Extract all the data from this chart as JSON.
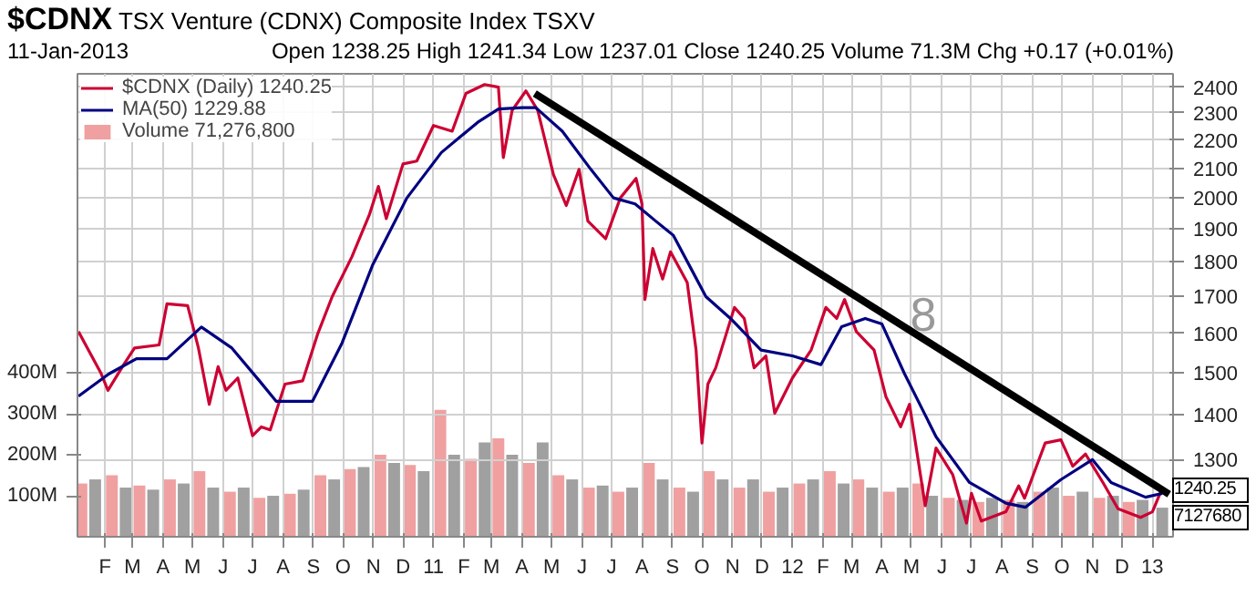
{
  "chart_data": {
    "type": "line",
    "title": "$CDNX",
    "subtitle": "TSX Venture (CDNX) Composite Index TSXV",
    "annotations": [
      "11-Jan-2013",
      "Open 1238.25 High 1241.34 Low 1237.01 Close 1240.25 Volume 71.3M Chg +0.17 (+0.01%)",
      "1240.25",
      "7127680",
      "8"
    ],
    "xlim": [
      "2010-01-04",
      "2013-01-22"
    ],
    "xticks": [
      {
        "value": "2010-02-01",
        "label": "F"
      },
      {
        "value": "2010-03-01",
        "label": "M"
      },
      {
        "value": "2010-04-01",
        "label": "A"
      },
      {
        "value": "2010-05-01",
        "label": "M"
      },
      {
        "value": "2010-06-01",
        "label": "J"
      },
      {
        "value": "2010-07-01",
        "label": "J"
      },
      {
        "value": "2010-08-01",
        "label": "A"
      },
      {
        "value": "2010-09-01",
        "label": "S"
      },
      {
        "value": "2010-10-01",
        "label": "O"
      },
      {
        "value": "2010-11-01",
        "label": "N"
      },
      {
        "value": "2010-12-01",
        "label": "D"
      },
      {
        "value": "2011-01-01",
        "label": "11"
      },
      {
        "value": "2011-02-01",
        "label": "F"
      },
      {
        "value": "2011-03-01",
        "label": "M"
      },
      {
        "value": "2011-04-01",
        "label": "A"
      },
      {
        "value": "2011-05-01",
        "label": "M"
      },
      {
        "value": "2011-06-01",
        "label": "J"
      },
      {
        "value": "2011-07-01",
        "label": "J"
      },
      {
        "value": "2011-08-01",
        "label": "A"
      },
      {
        "value": "2011-09-01",
        "label": "S"
      },
      {
        "value": "2011-10-01",
        "label": "O"
      },
      {
        "value": "2011-11-01",
        "label": "N"
      },
      {
        "value": "2011-12-01",
        "label": "D"
      },
      {
        "value": "2012-01-01",
        "label": "12"
      },
      {
        "value": "2012-02-01",
        "label": "F"
      },
      {
        "value": "2012-03-01",
        "label": "M"
      },
      {
        "value": "2012-04-01",
        "label": "A"
      },
      {
        "value": "2012-05-01",
        "label": "M"
      },
      {
        "value": "2012-06-01",
        "label": "J"
      },
      {
        "value": "2012-07-01",
        "label": "J"
      },
      {
        "value": "2012-08-01",
        "label": "A"
      },
      {
        "value": "2012-09-01",
        "label": "S"
      },
      {
        "value": "2012-10-01",
        "label": "O"
      },
      {
        "value": "2012-11-01",
        "label": "N"
      },
      {
        "value": "2012-12-01",
        "label": "D"
      },
      {
        "value": "2013-01-01",
        "label": "13"
      }
    ],
    "ylim": [
      0,
      1130
    ],
    "yticks": [
      {
        "value": 100,
        "label": "100M"
      },
      {
        "value": 200,
        "label": "200M"
      },
      {
        "value": 300,
        "label": "300M"
      },
      {
        "value": 400,
        "label": "400M"
      }
    ],
    "y2lim": [
      1145,
      2453
    ],
    "y2ticks": [
      1300,
      1400,
      1500,
      1600,
      1700,
      1800,
      1900,
      2000,
      2100,
      2200,
      2300,
      2400
    ],
    "log": "y2",
    "grid": true,
    "legend": "top left",
    "series": [
      {
        "name": "$CDNX (Daily) 1240.25",
        "axis": "y2",
        "color": "#cc0033",
        "x": [
          "2010-01-05",
          "2010-01-28",
          "2010-02-04",
          "2010-02-20",
          "2010-03-03",
          "2010-03-28",
          "2010-04-05",
          "2010-04-26",
          "2010-05-07",
          "2010-05-18",
          "2010-05-27",
          "2010-06-04",
          "2010-06-16",
          "2010-07-01",
          "2010-07-10",
          "2010-07-19",
          "2010-08-03",
          "2010-08-21",
          "2010-09-05",
          "2010-09-20",
          "2010-10-10",
          "2010-10-28",
          "2010-11-06",
          "2010-11-14",
          "2010-12-01",
          "2010-12-15",
          "2011-01-01",
          "2011-01-20",
          "2011-02-03",
          "2011-02-22",
          "2011-03-08",
          "2011-03-13",
          "2011-03-22",
          "2011-04-05",
          "2011-04-17",
          "2011-05-03",
          "2011-05-16",
          "2011-05-29",
          "2011-06-07",
          "2011-06-25",
          "2011-07-10",
          "2011-07-26",
          "2011-08-01",
          "2011-08-04",
          "2011-08-12",
          "2011-08-22",
          "2011-08-30",
          "2011-09-16",
          "2011-09-25",
          "2011-10-01",
          "2011-10-07",
          "2011-10-15",
          "2011-11-03",
          "2011-11-13",
          "2011-11-23",
          "2011-12-05",
          "2011-12-14",
          "2012-01-01",
          "2012-01-20",
          "2012-02-04",
          "2012-02-15",
          "2012-02-23",
          "2012-03-06",
          "2012-03-24",
          "2012-04-05",
          "2012-04-20",
          "2012-04-29",
          "2012-05-15",
          "2012-05-26",
          "2012-06-12",
          "2012-06-26",
          "2012-07-01",
          "2012-07-11",
          "2012-08-05",
          "2012-08-18",
          "2012-08-24",
          "2012-09-14",
          "2012-09-30",
          "2012-10-12",
          "2012-10-25",
          "2012-11-12",
          "2012-11-27",
          "2012-12-20",
          "2013-01-01",
          "2013-01-11"
        ],
        "values": [
          1605,
          1498,
          1457,
          1520,
          1562,
          1570,
          1680,
          1675,
          1562,
          1424,
          1515,
          1457,
          1487,
          1352,
          1372,
          1365,
          1472,
          1480,
          1597,
          1700,
          1815,
          1947,
          2038,
          1933,
          2115,
          2125,
          2253,
          2232,
          2375,
          2410,
          2400,
          2137,
          2310,
          2385,
          2310,
          2078,
          1975,
          2096,
          1925,
          1870,
          2000,
          2065,
          1980,
          1692,
          1840,
          1750,
          1830,
          1740,
          1557,
          1336,
          1472,
          1512,
          1670,
          1640,
          1512,
          1542,
          1403,
          1487,
          1557,
          1670,
          1640,
          1692,
          1605,
          1557,
          1442,
          1372,
          1424,
          1205,
          1325,
          1268,
          1171,
          1230,
          1175,
          1193,
          1245,
          1220,
          1336,
          1343,
          1286,
          1312,
          1251,
          1199,
          1182,
          1193,
          1240.25
        ]
      },
      {
        "name": "MA(50) 1229.88",
        "axis": "y2",
        "color": "#000080",
        "x": [
          "2010-01-05",
          "2010-02-05",
          "2010-03-05",
          "2010-04-05",
          "2010-05-10",
          "2010-06-10",
          "2010-07-08",
          "2010-07-25",
          "2010-08-31",
          "2010-09-30",
          "2010-10-31",
          "2010-12-05",
          "2011-01-09",
          "2011-02-15",
          "2011-03-08",
          "2011-04-01",
          "2011-04-15",
          "2011-05-12",
          "2011-06-10",
          "2011-07-03",
          "2011-07-25",
          "2011-08-15",
          "2011-09-02",
          "2011-10-05",
          "2011-10-30",
          "2011-11-30",
          "2012-01-01",
          "2012-01-30",
          "2012-02-20",
          "2012-03-15",
          "2012-04-01",
          "2012-04-24",
          "2012-05-26",
          "2012-06-29",
          "2012-08-05",
          "2012-08-25",
          "2012-09-30",
          "2012-11-01",
          "2012-11-20",
          "2012-12-25",
          "2013-01-11"
        ],
        "values": [
          1443,
          1497,
          1535,
          1535,
          1617,
          1562,
          1480,
          1431,
          1431,
          1575,
          1790,
          2000,
          2155,
          2265,
          2315,
          2320,
          2320,
          2232,
          2096,
          2000,
          1980,
          1925,
          1880,
          1700,
          1640,
          1557,
          1542,
          1520,
          1618,
          1640,
          1625,
          1497,
          1350,
          1252,
          1210,
          1202,
          1258,
          1300,
          1252,
          1222,
          1229.88
        ]
      },
      {
        "name": "Volume 71,276,800",
        "type": "bar",
        "x": [
          "2010-01-08",
          "2010-01-22",
          "2010-02-08",
          "2010-02-22",
          "2010-03-08",
          "2010-03-22",
          "2010-04-08",
          "2010-04-22",
          "2010-05-08",
          "2010-05-22",
          "2010-06-08",
          "2010-06-22",
          "2010-07-08",
          "2010-07-22",
          "2010-08-08",
          "2010-08-22",
          "2010-09-08",
          "2010-09-22",
          "2010-10-08",
          "2010-10-22",
          "2010-11-08",
          "2010-11-22",
          "2010-12-08",
          "2010-12-22",
          "2011-01-08",
          "2011-01-22",
          "2011-02-08",
          "2011-02-22",
          "2011-03-08",
          "2011-03-22",
          "2011-04-08",
          "2011-04-22",
          "2011-05-08",
          "2011-05-22",
          "2011-06-08",
          "2011-06-22",
          "2011-07-08",
          "2011-07-22",
          "2011-08-08",
          "2011-08-22",
          "2011-09-08",
          "2011-09-22",
          "2011-10-08",
          "2011-10-22",
          "2011-11-08",
          "2011-11-22",
          "2011-12-08",
          "2011-12-22",
          "2012-01-08",
          "2012-01-22",
          "2012-02-08",
          "2012-02-22",
          "2012-03-08",
          "2012-03-22",
          "2012-04-08",
          "2012-04-22",
          "2012-05-08",
          "2012-05-22",
          "2012-06-08",
          "2012-06-22",
          "2012-07-08",
          "2012-07-22",
          "2012-08-08",
          "2012-08-22",
          "2012-09-08",
          "2012-09-22",
          "2012-10-08",
          "2012-10-22",
          "2012-11-08",
          "2012-11-22",
          "2012-12-08",
          "2012-12-22",
          "2013-01-11"
        ],
        "values": [
          130,
          140,
          150,
          120,
          125,
          115,
          140,
          130,
          160,
          120,
          110,
          120,
          95,
          100,
          105,
          115,
          150,
          140,
          165,
          170,
          200,
          180,
          175,
          160,
          310,
          200,
          190,
          230,
          240,
          200,
          180,
          230,
          150,
          140,
          120,
          125,
          110,
          120,
          180,
          140,
          120,
          110,
          160,
          140,
          120,
          140,
          110,
          120,
          130,
          140,
          160,
          130,
          140,
          120,
          110,
          120,
          130,
          100,
          95,
          90,
          85,
          95,
          90,
          85,
          110,
          120,
          100,
          110,
          95,
          100,
          85,
          90,
          71
        ],
        "colors": [
          "#f0a0a0",
          "#a0a0a0",
          "#f0a0a0",
          "#a0a0a0",
          "#f0a0a0",
          "#a0a0a0",
          "#f0a0a0",
          "#a0a0a0",
          "#f0a0a0",
          "#a0a0a0",
          "#f0a0a0",
          "#a0a0a0",
          "#f0a0a0",
          "#a0a0a0",
          "#f0a0a0",
          "#a0a0a0",
          "#f0a0a0",
          "#a0a0a0",
          "#f0a0a0",
          "#a0a0a0",
          "#f0a0a0",
          "#a0a0a0",
          "#f0a0a0",
          "#a0a0a0",
          "#f0a0a0",
          "#a0a0a0",
          "#f0a0a0",
          "#a0a0a0",
          "#f0a0a0",
          "#a0a0a0",
          "#f0a0a0",
          "#a0a0a0",
          "#f0a0a0",
          "#a0a0a0",
          "#f0a0a0",
          "#a0a0a0",
          "#f0a0a0",
          "#a0a0a0",
          "#f0a0a0",
          "#a0a0a0",
          "#f0a0a0",
          "#a0a0a0",
          "#f0a0a0",
          "#a0a0a0",
          "#f0a0a0",
          "#a0a0a0",
          "#f0a0a0",
          "#a0a0a0",
          "#f0a0a0",
          "#a0a0a0",
          "#f0a0a0",
          "#a0a0a0",
          "#f0a0a0",
          "#a0a0a0",
          "#f0a0a0",
          "#a0a0a0",
          "#f0a0a0",
          "#a0a0a0",
          "#f0a0a0",
          "#a0a0a0",
          "#f0a0a0",
          "#a0a0a0",
          "#f0a0a0",
          "#a0a0a0",
          "#f0a0a0",
          "#a0a0a0",
          "#f0a0a0",
          "#a0a0a0",
          "#f0a0a0",
          "#a0a0a0",
          "#f0a0a0",
          "#a0a0a0",
          "#a0a0a0"
        ]
      },
      {
        "axis": "y2",
        "color": "#000000",
        "x": [
          "2011-04-14",
          "2013-01-18"
        ],
        "values": [
          2375,
          1228
        ]
      }
    ]
  }
}
